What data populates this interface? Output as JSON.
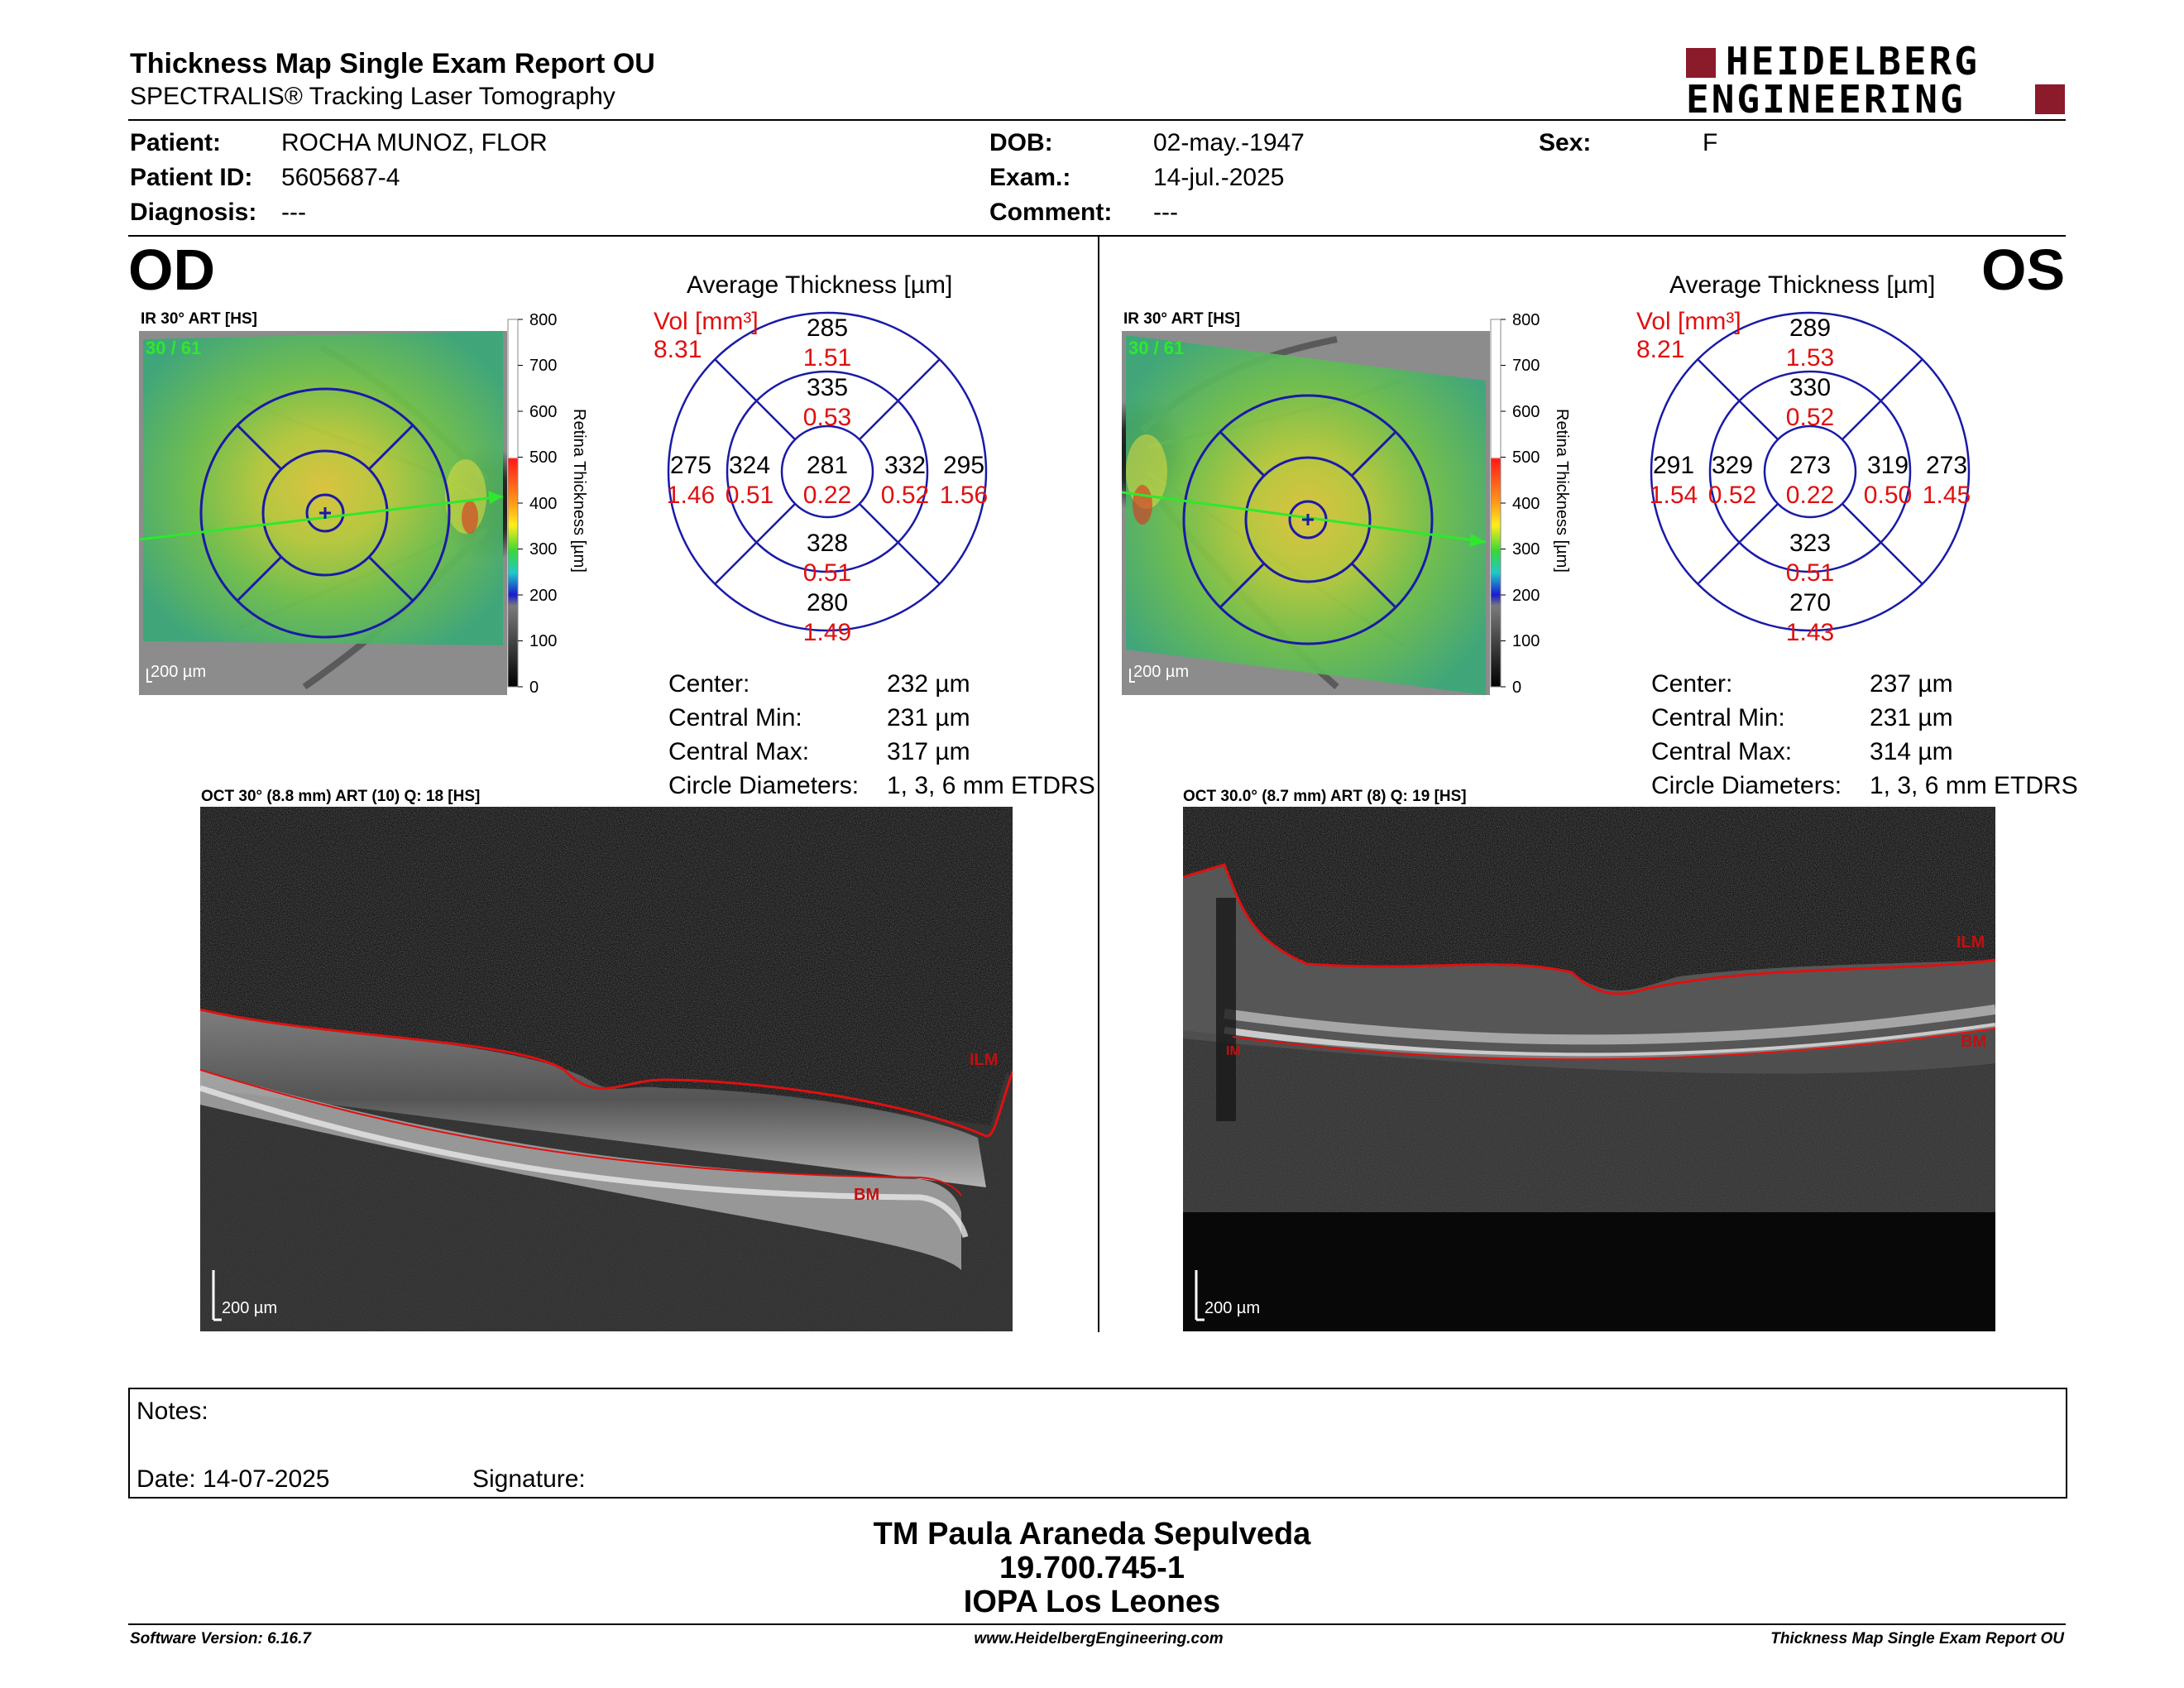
{
  "header": {
    "title": "Thickness Map Single Exam Report OU",
    "subtitle": "SPECTRALIS® Tracking Laser Tomography",
    "logo_line1": "HEIDELBERG",
    "logo_line2": "ENGINEERING"
  },
  "patient": {
    "patient_label": "Patient:",
    "patient_value": "ROCHA MUNOZ, FLOR",
    "id_label": "Patient ID:",
    "id_value": "5605687-4",
    "diagnosis_label": "Diagnosis:",
    "diagnosis_value": "---",
    "dob_label": "DOB:",
    "dob_value": "02-may.-1947",
    "exam_label": "Exam.:",
    "exam_value": "14-jul.-2025",
    "comment_label": "Comment:",
    "comment_value": "---",
    "sex_label": "Sex:",
    "sex_value": "F"
  },
  "od": {
    "eye": "OD",
    "ir_label": "IR 30° ART [HS]",
    "ir_overlay": "30 / 61",
    "ir_scale": "200 µm",
    "colorbar_ticks": [
      "800",
      "700",
      "600",
      "500",
      "400",
      "300",
      "200",
      "100",
      "0"
    ],
    "colorbar_title": "Retina Thickness [µm]",
    "avg_title": "Average Thickness [µm]",
    "vol_label": "Vol [mm³]",
    "vol_value": "8.31",
    "grid": {
      "center_t": "281",
      "center_v": "0.22",
      "inner_sup_t": "335",
      "inner_sup_v": "0.53",
      "inner_inf_t": "328",
      "inner_inf_v": "0.51",
      "inner_left_t": "324",
      "inner_left_v": "0.51",
      "inner_right_t": "332",
      "inner_right_v": "0.52",
      "outer_sup_t": "285",
      "outer_sup_v": "1.51",
      "outer_inf_t": "280",
      "outer_inf_v": "1.49",
      "outer_left_t": "275",
      "outer_left_v": "1.46",
      "outer_right_t": "295",
      "outer_right_v": "1.56"
    },
    "stats": {
      "center_label": "Center:",
      "center_value": "232 µm",
      "min_label": "Central Min:",
      "min_value": "231 µm",
      "max_label": "Central Max:",
      "max_value": "317 µm",
      "diam_label": "Circle Diameters:",
      "diam_value": "1, 3, 6 mm ETDRS"
    },
    "oct_label": "OCT 30° (8.8 mm) ART (10) Q: 18 [HS]",
    "oct_scale": "200 µm",
    "ilm": "ILM",
    "bm": "BM"
  },
  "os": {
    "eye": "OS",
    "ir_label": "IR 30° ART [HS]",
    "ir_overlay": "30 / 61",
    "ir_scale": "200 µm",
    "colorbar_ticks": [
      "800",
      "700",
      "600",
      "500",
      "400",
      "300",
      "200",
      "100",
      "0"
    ],
    "colorbar_title": "Retina Thickness [µm]",
    "avg_title": "Average Thickness [µm]",
    "vol_label": "Vol [mm³]",
    "vol_value": "8.21",
    "grid": {
      "center_t": "273",
      "center_v": "0.22",
      "inner_sup_t": "330",
      "inner_sup_v": "0.52",
      "inner_inf_t": "323",
      "inner_inf_v": "0.51",
      "inner_left_t": "329",
      "inner_left_v": "0.52",
      "inner_right_t": "319",
      "inner_right_v": "0.50",
      "outer_sup_t": "289",
      "outer_sup_v": "1.53",
      "outer_inf_t": "270",
      "outer_inf_v": "1.43",
      "outer_left_t": "291",
      "outer_left_v": "1.54",
      "outer_right_t": "273",
      "outer_right_v": "1.45"
    },
    "stats": {
      "center_label": "Center:",
      "center_value": "237 µm",
      "min_label": "Central Min:",
      "min_value": "231 µm",
      "max_label": "Central Max:",
      "max_value": "314 µm",
      "diam_label": "Circle Diameters:",
      "diam_value": "1, 3, 6 mm ETDRS"
    },
    "oct_label": "OCT 30.0° (8.7 mm) ART (8) Q: 19 [HS]",
    "oct_scale": "200 µm",
    "ilm": "ILM",
    "bm": "BM",
    "im": "IM"
  },
  "notes": {
    "notes_label": "Notes:",
    "date_label": "Date: 14-07-2025",
    "signature_label": "Signature:"
  },
  "signature": {
    "name": "TM Paula Araneda Sepulveda",
    "id": "19.700.745-1",
    "org": "IOPA Los Leones"
  },
  "footer": {
    "software": "Software Version: 6.16.7",
    "website": "www.HeidelbergEngineering.com",
    "report": "Thickness Map Single Exam Report OU"
  },
  "colors": {
    "maroon": "#8b1a2b",
    "grid_blue": "#1a1aa8",
    "red_text": "#e01010",
    "green_overlay": "#2ee82e"
  }
}
